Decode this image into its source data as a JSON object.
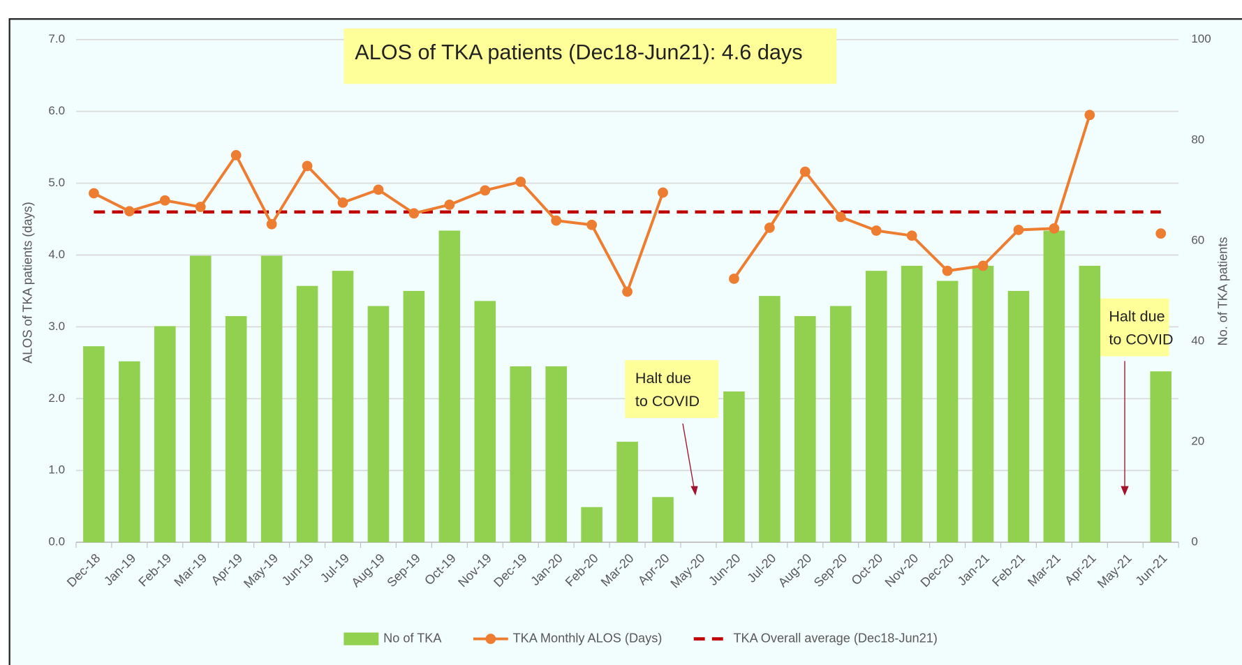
{
  "chart_data": {
    "type": "bar_line",
    "title": "ALOS of TKA patients (Dec18-Jun21):  4.6 days",
    "y_label": "ALOS of TKA patients (days)",
    "y2_label": "No. of TKA patients",
    "categories": [
      "Dec-18",
      "Jan-19",
      "Feb-19",
      "Mar-19",
      "Apr-19",
      "May-19",
      "Jun-19",
      "Jul-19",
      "Aug-19",
      "Sep-19",
      "Oct-19",
      "Nov-19",
      "Dec-19",
      "Jan-20",
      "Feb-20",
      "Mar-20",
      "Apr-20",
      "May-20",
      "Jun-20",
      "Jul-20",
      "Aug-20",
      "Sep-20",
      "Oct-20",
      "Nov-20",
      "Dec-20",
      "Jan-21",
      "Feb-21",
      "Mar-21",
      "Apr-21",
      "May-21",
      "Jun-21"
    ],
    "ylim": [
      0,
      7
    ],
    "yticks": [
      {
        "value": 0,
        "label": "0.0"
      },
      {
        "value": 1,
        "label": "1.0"
      },
      {
        "value": 2,
        "label": "2.0"
      },
      {
        "value": 3,
        "label": "3.0"
      },
      {
        "value": 4,
        "label": "4.0"
      },
      {
        "value": 5,
        "label": "5.0"
      },
      {
        "value": 6,
        "label": "6.0"
      },
      {
        "value": 7,
        "label": "7.0"
      }
    ],
    "y2lim": [
      0,
      100
    ],
    "y2ticks": [
      0,
      20,
      40,
      60,
      80,
      100
    ],
    "grid": true,
    "series": [
      {
        "name": "No of TKA",
        "type": "bar",
        "axis": "y2",
        "color": "#92d050",
        "values": [
          39,
          36,
          43,
          57,
          45,
          57,
          51,
          54,
          47,
          50,
          62,
          48,
          35,
          35,
          7,
          20,
          9,
          null,
          30,
          49,
          45,
          47,
          54,
          55,
          52,
          55,
          50,
          62,
          55,
          null,
          34
        ]
      },
      {
        "name": "TKA Monthly ALOS (Days)",
        "type": "line",
        "color": "#ed7d31",
        "values": [
          4.86,
          4.61,
          4.76,
          4.67,
          5.39,
          4.43,
          5.24,
          4.73,
          4.91,
          4.58,
          4.7,
          4.9,
          5.02,
          4.48,
          4.42,
          3.49,
          4.87,
          null,
          3.67,
          4.38,
          5.16,
          4.53,
          4.34,
          4.27,
          3.78,
          3.85,
          4.35,
          4.37,
          5.95,
          null,
          4.3
        ]
      },
      {
        "name": "TKA Overall average (Dec18-Jun21)",
        "type": "hline",
        "color": "#c00000",
        "value": 4.6
      }
    ],
    "annotations": [
      {
        "lines": [
          "Halt due",
          "to COVID"
        ]
      },
      {
        "lines": [
          "Halt due",
          "to COVID"
        ]
      }
    ]
  }
}
